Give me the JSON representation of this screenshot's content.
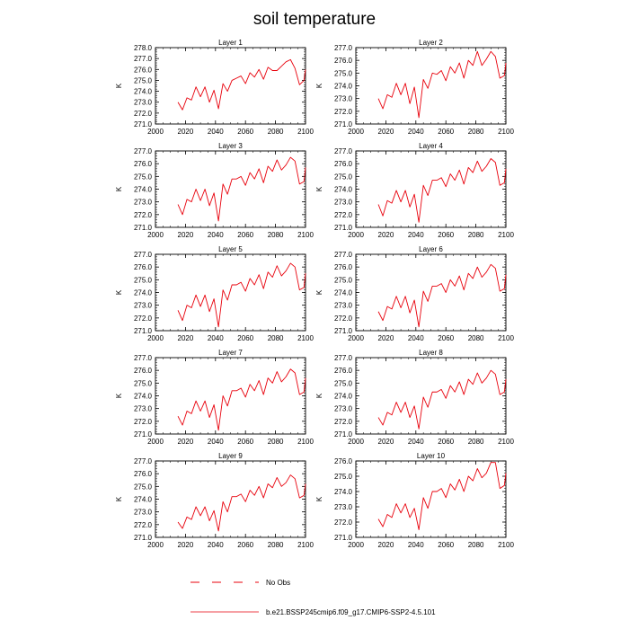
{
  "title": "soil temperature",
  "chart_data": {
    "type": "line",
    "title": "soil temperature",
    "panel_ylabel": "K",
    "xlim": [
      2000,
      2100
    ],
    "xticks": [
      2000,
      2020,
      2040,
      2060,
      2080,
      2100
    ],
    "line_color": "#e8000b",
    "legend": [
      {
        "name": "No Obs",
        "style": "dashed",
        "color": "#e8000b"
      },
      {
        "name": "b.e21.BSSP245cmip6.f09_g17.CMIP6-SSP2-4.5.101",
        "style": "solid",
        "color": "#e8000b"
      }
    ],
    "panels": [
      {
        "title": "Layer 1",
        "ylim": [
          271.0,
          278.0
        ],
        "yticks": [
          271.0,
          272.0,
          273.0,
          274.0,
          275.0,
          276.0,
          277.0,
          278.0
        ],
        "series": {
          "x": [
            2015,
            2018,
            2021,
            2024,
            2027,
            2030,
            2033,
            2036,
            2039,
            2042,
            2045,
            2048,
            2051,
            2054,
            2057,
            2060,
            2063,
            2066,
            2069,
            2072,
            2075,
            2078,
            2081,
            2084,
            2087,
            2090,
            2093,
            2096,
            2099,
            2100
          ],
          "y": [
            273.0,
            272.3,
            273.4,
            273.2,
            274.4,
            273.5,
            274.4,
            273.0,
            274.1,
            272.4,
            274.7,
            274.0,
            275.0,
            275.2,
            275.4,
            274.7,
            275.7,
            275.3,
            276.0,
            275.1,
            276.2,
            275.9,
            275.9,
            276.3,
            276.7,
            276.9,
            276.1,
            274.6,
            275.0,
            276.0
          ]
        }
      },
      {
        "title": "Layer 2",
        "ylim": [
          271.0,
          277.0
        ],
        "yticks": [
          271.0,
          272.0,
          273.0,
          274.0,
          275.0,
          276.0,
          277.0
        ],
        "series": {
          "x": [
            2015,
            2018,
            2021,
            2024,
            2027,
            2030,
            2033,
            2036,
            2039,
            2042,
            2045,
            2048,
            2051,
            2054,
            2057,
            2060,
            2063,
            2066,
            2069,
            2072,
            2075,
            2078,
            2081,
            2084,
            2087,
            2090,
            2093,
            2096,
            2099,
            2100
          ],
          "y": [
            273.0,
            272.2,
            273.3,
            273.1,
            274.2,
            273.3,
            274.2,
            272.6,
            273.9,
            271.5,
            274.5,
            273.8,
            275.0,
            274.9,
            275.2,
            274.4,
            275.5,
            275.0,
            275.8,
            274.6,
            276.0,
            275.6,
            276.7,
            275.6,
            276.1,
            276.7,
            276.3,
            274.6,
            274.8,
            275.8
          ]
        }
      },
      {
        "title": "Layer 3",
        "ylim": [
          271.0,
          277.0
        ],
        "yticks": [
          271.0,
          272.0,
          273.0,
          274.0,
          275.0,
          276.0,
          277.0
        ],
        "series": {
          "x": [
            2015,
            2018,
            2021,
            2024,
            2027,
            2030,
            2033,
            2036,
            2039,
            2042,
            2045,
            2048,
            2051,
            2054,
            2057,
            2060,
            2063,
            2066,
            2069,
            2072,
            2075,
            2078,
            2081,
            2084,
            2087,
            2090,
            2093,
            2096,
            2099,
            2100
          ],
          "y": [
            272.8,
            272.0,
            273.2,
            273.0,
            274.0,
            273.1,
            274.0,
            272.7,
            273.7,
            271.5,
            274.4,
            273.6,
            274.8,
            274.8,
            275.0,
            274.3,
            275.3,
            274.8,
            275.6,
            274.5,
            275.8,
            275.4,
            276.3,
            275.5,
            275.9,
            276.5,
            276.2,
            274.4,
            274.6,
            275.7
          ]
        }
      },
      {
        "title": "Layer 4",
        "ylim": [
          271.0,
          277.0
        ],
        "yticks": [
          271.0,
          272.0,
          273.0,
          274.0,
          275.0,
          276.0,
          277.0
        ],
        "series": {
          "x": [
            2015,
            2018,
            2021,
            2024,
            2027,
            2030,
            2033,
            2036,
            2039,
            2042,
            2045,
            2048,
            2051,
            2054,
            2057,
            2060,
            2063,
            2066,
            2069,
            2072,
            2075,
            2078,
            2081,
            2084,
            2087,
            2090,
            2093,
            2096,
            2099,
            2100
          ],
          "y": [
            272.8,
            271.9,
            273.1,
            272.9,
            273.9,
            273.0,
            273.9,
            272.6,
            273.6,
            271.4,
            274.3,
            273.5,
            274.7,
            274.7,
            274.9,
            274.2,
            275.2,
            274.7,
            275.5,
            274.4,
            275.7,
            275.3,
            276.2,
            275.4,
            275.8,
            276.4,
            276.1,
            274.3,
            274.5,
            275.6
          ]
        }
      },
      {
        "title": "Layer 5",
        "ylim": [
          271.0,
          277.0
        ],
        "yticks": [
          271.0,
          272.0,
          273.0,
          274.0,
          275.0,
          276.0,
          277.0
        ],
        "series": {
          "x": [
            2015,
            2018,
            2021,
            2024,
            2027,
            2030,
            2033,
            2036,
            2039,
            2042,
            2045,
            2048,
            2051,
            2054,
            2057,
            2060,
            2063,
            2066,
            2069,
            2072,
            2075,
            2078,
            2081,
            2084,
            2087,
            2090,
            2093,
            2096,
            2099,
            2100
          ],
          "y": [
            272.6,
            271.8,
            273.0,
            272.8,
            273.8,
            272.9,
            273.8,
            272.5,
            273.5,
            271.3,
            274.2,
            273.4,
            274.6,
            274.6,
            274.8,
            274.1,
            275.1,
            274.6,
            275.4,
            274.3,
            275.6,
            275.2,
            276.1,
            275.3,
            275.7,
            276.3,
            276.0,
            274.2,
            274.4,
            275.5
          ]
        }
      },
      {
        "title": "Layer 6",
        "ylim": [
          271.0,
          277.0
        ],
        "yticks": [
          271.0,
          272.0,
          273.0,
          274.0,
          275.0,
          276.0,
          277.0
        ],
        "series": {
          "x": [
            2015,
            2018,
            2021,
            2024,
            2027,
            2030,
            2033,
            2036,
            2039,
            2042,
            2045,
            2048,
            2051,
            2054,
            2057,
            2060,
            2063,
            2066,
            2069,
            2072,
            2075,
            2078,
            2081,
            2084,
            2087,
            2090,
            2093,
            2096,
            2099,
            2100
          ],
          "y": [
            272.5,
            271.8,
            272.9,
            272.7,
            273.7,
            272.8,
            273.7,
            272.4,
            273.4,
            271.3,
            274.1,
            273.3,
            274.5,
            274.5,
            274.7,
            274.0,
            275.0,
            274.5,
            275.3,
            274.2,
            275.5,
            275.1,
            276.0,
            275.2,
            275.6,
            276.2,
            275.9,
            274.1,
            274.3,
            275.4
          ]
        }
      },
      {
        "title": "Layer 7",
        "ylim": [
          271.0,
          277.0
        ],
        "yticks": [
          271.0,
          272.0,
          273.0,
          274.0,
          275.0,
          276.0,
          277.0
        ],
        "series": {
          "x": [
            2015,
            2018,
            2021,
            2024,
            2027,
            2030,
            2033,
            2036,
            2039,
            2042,
            2045,
            2048,
            2051,
            2054,
            2057,
            2060,
            2063,
            2066,
            2069,
            2072,
            2075,
            2078,
            2081,
            2084,
            2087,
            2090,
            2093,
            2096,
            2099,
            2100
          ],
          "y": [
            272.4,
            271.7,
            272.8,
            272.6,
            273.6,
            272.8,
            273.6,
            272.3,
            273.3,
            271.3,
            274.0,
            273.2,
            274.4,
            274.4,
            274.6,
            273.9,
            274.9,
            274.4,
            275.2,
            274.1,
            275.4,
            275.0,
            275.9,
            275.1,
            275.5,
            276.1,
            275.8,
            274.1,
            274.3,
            275.4
          ]
        }
      },
      {
        "title": "Layer 8",
        "ylim": [
          271.0,
          277.0
        ],
        "yticks": [
          271.0,
          272.0,
          273.0,
          274.0,
          275.0,
          276.0,
          277.0
        ],
        "series": {
          "x": [
            2015,
            2018,
            2021,
            2024,
            2027,
            2030,
            2033,
            2036,
            2039,
            2042,
            2045,
            2048,
            2051,
            2054,
            2057,
            2060,
            2063,
            2066,
            2069,
            2072,
            2075,
            2078,
            2081,
            2084,
            2087,
            2090,
            2093,
            2096,
            2099,
            2100
          ],
          "y": [
            272.3,
            271.7,
            272.7,
            272.5,
            273.5,
            272.7,
            273.5,
            272.3,
            273.2,
            271.4,
            273.9,
            273.1,
            274.3,
            274.3,
            274.5,
            273.8,
            274.8,
            274.3,
            275.1,
            274.1,
            275.3,
            274.9,
            275.8,
            275.0,
            275.4,
            276.0,
            275.7,
            274.1,
            274.3,
            275.3
          ]
        }
      },
      {
        "title": "Layer 9",
        "ylim": [
          271.0,
          277.0
        ],
        "yticks": [
          271.0,
          272.0,
          273.0,
          274.0,
          275.0,
          276.0,
          277.0
        ],
        "series": {
          "x": [
            2015,
            2018,
            2021,
            2024,
            2027,
            2030,
            2033,
            2036,
            2039,
            2042,
            2045,
            2048,
            2051,
            2054,
            2057,
            2060,
            2063,
            2066,
            2069,
            2072,
            2075,
            2078,
            2081,
            2084,
            2087,
            2090,
            2093,
            2096,
            2099,
            2100
          ],
          "y": [
            272.2,
            271.7,
            272.6,
            272.4,
            273.4,
            272.7,
            273.4,
            272.3,
            273.1,
            271.5,
            273.8,
            273.0,
            274.2,
            274.2,
            274.4,
            273.8,
            274.7,
            274.3,
            275.0,
            274.1,
            275.2,
            274.9,
            275.7,
            275.0,
            275.3,
            275.9,
            275.6,
            274.1,
            274.3,
            275.2
          ]
        }
      },
      {
        "title": "Layer 10",
        "ylim": [
          271.0,
          276.0
        ],
        "yticks": [
          271.0,
          272.0,
          273.0,
          274.0,
          275.0,
          276.0
        ],
        "series": {
          "x": [
            2015,
            2018,
            2021,
            2024,
            2027,
            2030,
            2033,
            2036,
            2039,
            2042,
            2045,
            2048,
            2051,
            2054,
            2057,
            2060,
            2063,
            2066,
            2069,
            2072,
            2075,
            2078,
            2081,
            2084,
            2087,
            2090,
            2093,
            2096,
            2099,
            2100
          ],
          "y": [
            272.2,
            271.7,
            272.5,
            272.3,
            273.2,
            272.6,
            273.2,
            272.3,
            272.9,
            271.5,
            273.6,
            272.9,
            274.0,
            274.0,
            274.2,
            273.6,
            274.5,
            274.1,
            274.8,
            274.0,
            275.0,
            274.7,
            275.5,
            274.9,
            275.2,
            275.9,
            275.9,
            274.2,
            274.4,
            275.2
          ]
        }
      }
    ]
  }
}
